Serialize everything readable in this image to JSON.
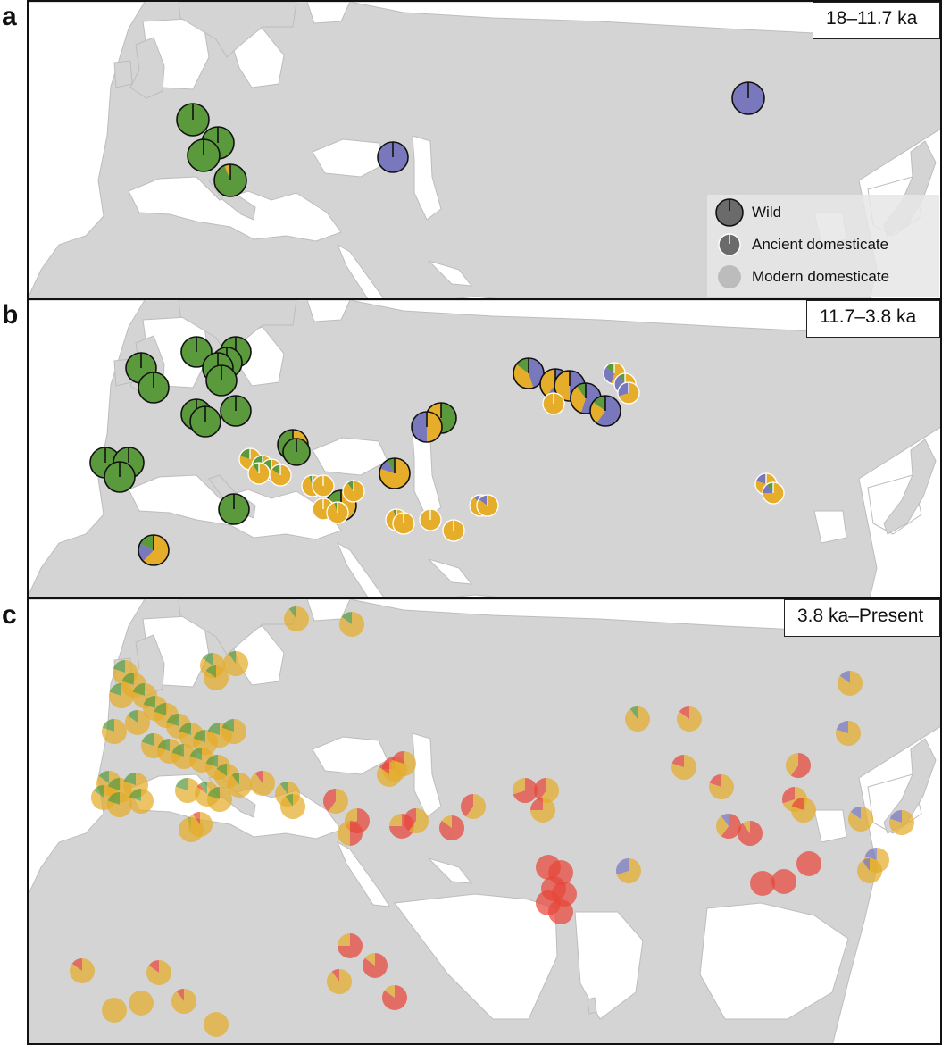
{
  "panels": [
    {
      "letter": "a",
      "era": "18–11.7 ka",
      "legend": {
        "items": [
          {
            "label": "Wild"
          },
          {
            "label": "Ancient domesticate"
          },
          {
            "label": "Modern domesticate"
          }
        ]
      }
    },
    {
      "letter": "b",
      "era": "11.7–3.8 ka"
    },
    {
      "letter": "c",
      "era": "3.8 ka–Present"
    }
  ],
  "colors": {
    "land": "#d4d4d4",
    "coast": "#bdbdbd",
    "sea": "#ffffff",
    "green": "#5a9a3c",
    "purple": "#7a78bd",
    "gold": "#e5ad2a",
    "red": "#e8463a",
    "wild_stroke": "#111111",
    "ancient_stroke": "#ffffff"
  }
}
